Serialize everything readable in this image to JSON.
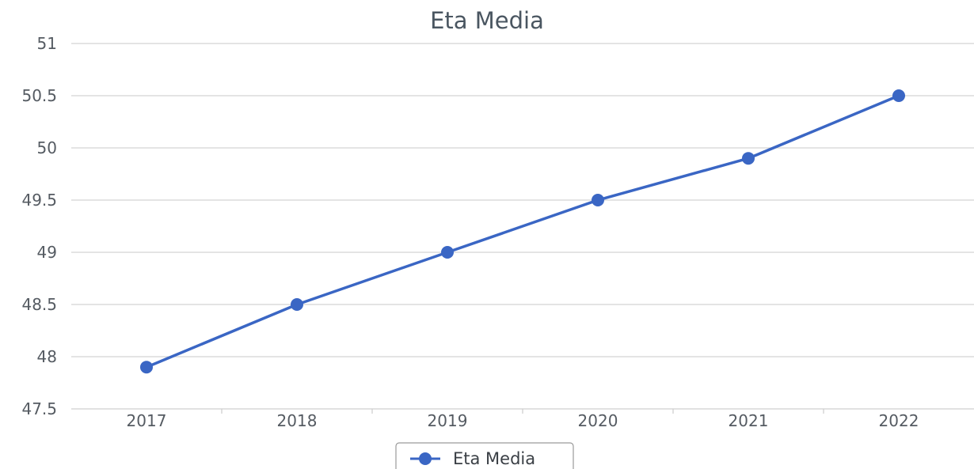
{
  "chart_data": {
    "type": "line",
    "title": "Eta Media",
    "xlabel": "",
    "ylabel": "",
    "categories": [
      "2017",
      "2018",
      "2019",
      "2020",
      "2021",
      "2022"
    ],
    "series": [
      {
        "name": "Eta Media",
        "values": [
          47.9,
          48.5,
          49.0,
          49.5,
          49.9,
          50.5
        ],
        "color": "#3a66c4"
      }
    ],
    "ylim": [
      47.5,
      51
    ],
    "yticks": [
      "47.5",
      "48",
      "48.5",
      "49",
      "49.5",
      "50",
      "50.5",
      "51"
    ],
    "grid": true,
    "legend": "bottom-center"
  }
}
